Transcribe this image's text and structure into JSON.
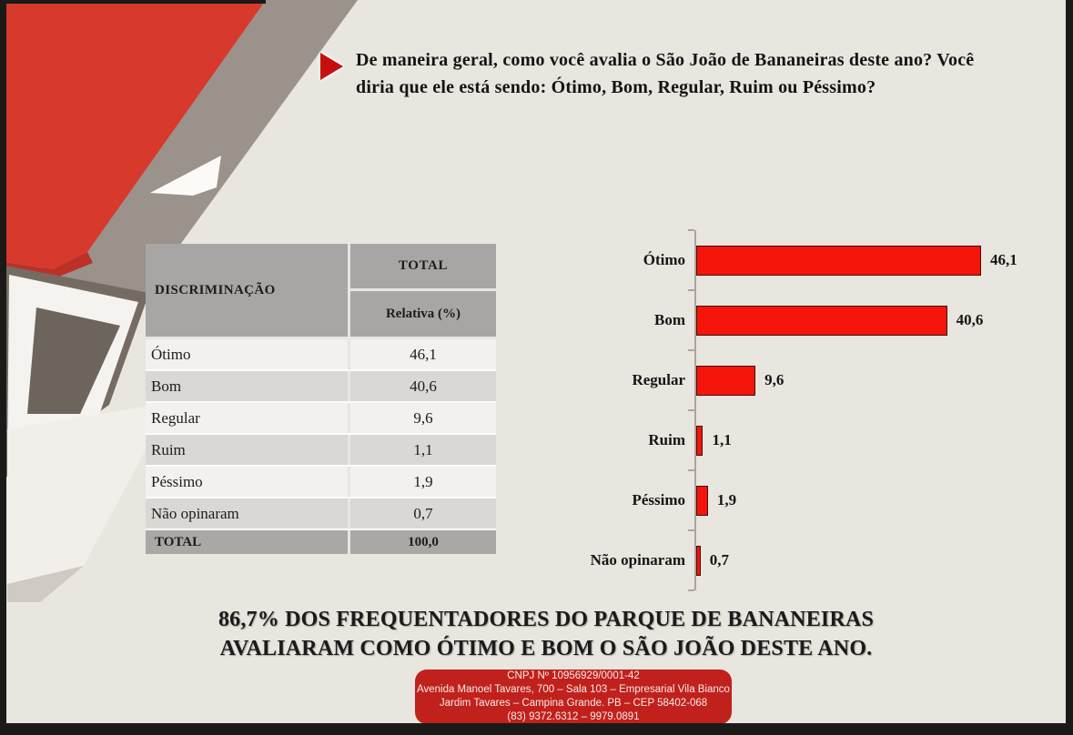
{
  "question": {
    "bullet_icon": "red-right-triangle",
    "text": "De maneira geral, como você avalia o São João de Bananeiras deste ano? Você diria que ele está sendo: Ótimo, Bom, Regular, Ruim ou Péssimo?"
  },
  "table": {
    "col1_header": "DISCRIMINAÇÃO",
    "col2_header_top": "TOTAL",
    "col2_header_bottom": "Relativa (%)",
    "rows": [
      {
        "label": "Ótimo",
        "value": "46,1"
      },
      {
        "label": "Bom",
        "value": "40,6"
      },
      {
        "label": "Regular",
        "value": "9,6"
      },
      {
        "label": "Ruim",
        "value": "1,1"
      },
      {
        "label": "Péssimo",
        "value": "1,9"
      },
      {
        "label": "Não opinaram",
        "value": "0,7"
      }
    ],
    "total_row": {
      "label": "TOTAL",
      "value": "100,0"
    }
  },
  "chart_data": {
    "type": "bar",
    "orientation": "horizontal",
    "title": "",
    "xlabel": "",
    "ylabel": "",
    "categories": [
      "Ótimo",
      "Bom",
      "Regular",
      "Ruim",
      "Péssimo",
      "Não opinaram"
    ],
    "values": [
      46.1,
      40.6,
      9.6,
      1.1,
      1.9,
      0.7
    ],
    "value_labels": [
      "46,1",
      "40,6",
      "9,6",
      "1,1",
      "1,9",
      "0,7"
    ],
    "xlim": [
      0,
      50
    ],
    "grid": false,
    "legend": false,
    "bar_color": "#f5150b"
  },
  "statement": {
    "line1": "86,7% DOS FREQUENTADORES DO PARQUE DE BANANEIRAS",
    "line2": "AVALIARAM COMO ÓTIMO E BOM O SÃO JOÃO DESTE ANO."
  },
  "footer": {
    "bg_color": "#c1211c",
    "lines": [
      "CNPJ Nº 10956929/0001-42",
      "Avenida Manoel Tavares, 700 – Sala 103 – Empresarial Vila Bianco",
      "Jardim Tavares – Campina Grande. PB – CEP 58402-068",
      "(83)  9372.6312 – 9979.0891"
    ]
  },
  "colors": {
    "background": "#e9e5df",
    "art_red": "#d7392c",
    "art_taupe": "#9a928b",
    "art_dark_taupe": "#756b63",
    "bar_red": "#f5150b",
    "footer_red": "#c1211c",
    "table_header_gray": "#a7a6a4",
    "row_light": "#f2f1ef",
    "row_dark": "#d9d8d5"
  }
}
